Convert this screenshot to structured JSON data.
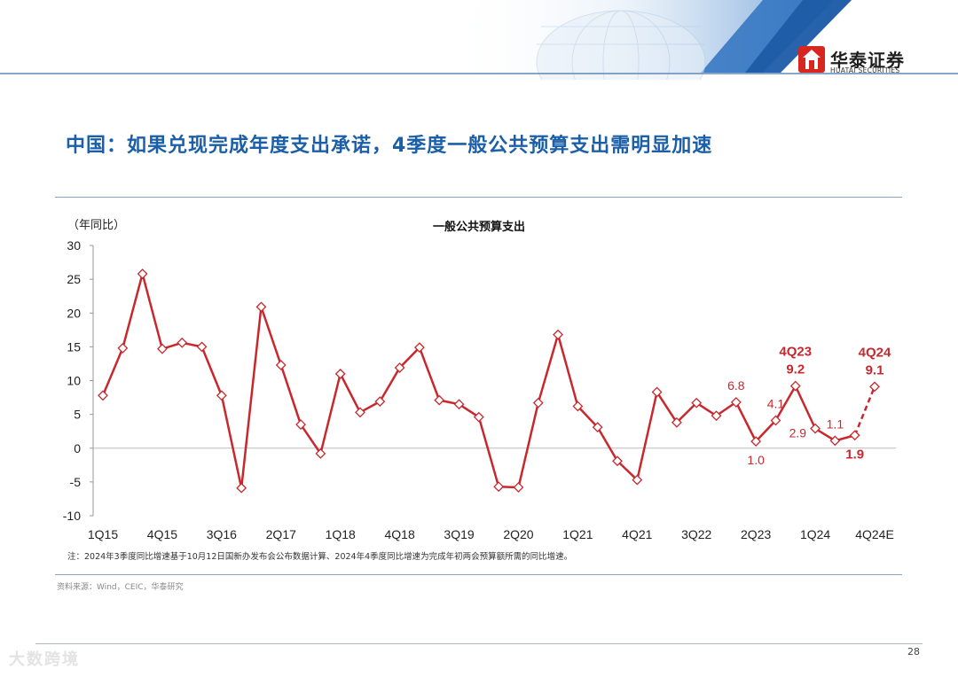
{
  "brand": {
    "name_cn": "华泰证券",
    "name_en": "HUATAI SECURITIES"
  },
  "title": "中国：如果兑现完成年度支出承诺，4季度一般公共预算支出需明显加速",
  "unit_label": "（年同比）",
  "note": "注：2024年3季度同比增速基于10月12日国新办发布会公布数据计算、2024年4季度同比增速为完成年初两会预算额所需的同比增速。",
  "source": "资料来源：Wind，CEIC，华泰研究",
  "page_number": "28",
  "watermark": "大数跨境",
  "colors": {
    "series": "#c8282d",
    "title": "#1a5fa8",
    "annotation": "#c8282d"
  },
  "chart_data": {
    "type": "line",
    "title": "一般公共预算支出",
    "ylabel": "（年同比）",
    "ylim": [
      -10,
      30
    ],
    "yticks": [
      30,
      25,
      20,
      15,
      10,
      5,
      0,
      -5,
      -10
    ],
    "quarters": [
      "1Q15",
      "2Q15",
      "3Q15",
      "4Q15",
      "1Q16",
      "2Q16",
      "3Q16",
      "4Q16",
      "1Q17",
      "2Q17",
      "3Q17",
      "4Q17",
      "1Q18",
      "2Q18",
      "3Q18",
      "4Q18",
      "1Q19",
      "2Q19",
      "3Q19",
      "4Q19",
      "1Q20",
      "2Q20",
      "3Q20",
      "4Q20",
      "1Q21",
      "2Q21",
      "3Q21",
      "4Q21",
      "1Q22",
      "2Q22",
      "3Q22",
      "4Q22",
      "1Q23",
      "2Q23",
      "3Q23",
      "4Q23",
      "1Q24",
      "2Q24",
      "3Q24",
      "4Q24E"
    ],
    "tick_labels": [
      "1Q15",
      "4Q15",
      "3Q16",
      "2Q17",
      "1Q18",
      "4Q18",
      "3Q19",
      "2Q20",
      "1Q21",
      "4Q21",
      "3Q22",
      "2Q23",
      "1Q24",
      "4Q24E"
    ],
    "tick_indices": [
      0,
      3,
      6,
      9,
      12,
      15,
      18,
      21,
      24,
      27,
      30,
      33,
      36,
      39
    ],
    "values": [
      7.8,
      14.8,
      25.8,
      14.7,
      15.6,
      15.0,
      7.8,
      -5.9,
      20.9,
      12.3,
      3.5,
      -0.8,
      11.0,
      5.3,
      6.9,
      11.9,
      14.9,
      7.1,
      6.5,
      4.6,
      -5.7,
      -5.8,
      6.7,
      16.8,
      6.2,
      3.1,
      -1.9,
      -4.7,
      8.3,
      3.8,
      6.7,
      4.8,
      6.8,
      1.0,
      4.1,
      9.2,
      2.9,
      1.1,
      1.9,
      9.1
    ],
    "estimate_from_index": 38,
    "annotations": [
      {
        "index": 32,
        "text": "6.8",
        "bold": false,
        "position": "above"
      },
      {
        "index": 33,
        "text": "1.0",
        "bold": false,
        "position": "below"
      },
      {
        "index": 34,
        "text": "4.1",
        "bold": false,
        "position": "above"
      },
      {
        "index": 35,
        "text": "4Q23",
        "bold": true,
        "position": "above2"
      },
      {
        "index": 35,
        "text": "9.2",
        "bold": true,
        "position": "above"
      },
      {
        "index": 36,
        "text": "2.9",
        "bold": false,
        "position": "left"
      },
      {
        "index": 37,
        "text": "1.1",
        "bold": false,
        "position": "above"
      },
      {
        "index": 38,
        "text": "1.9",
        "bold": true,
        "position": "below"
      },
      {
        "index": 39,
        "text": "4Q24",
        "bold": true,
        "position": "above2"
      },
      {
        "index": 39,
        "text": "9.1",
        "bold": true,
        "position": "above"
      }
    ]
  }
}
